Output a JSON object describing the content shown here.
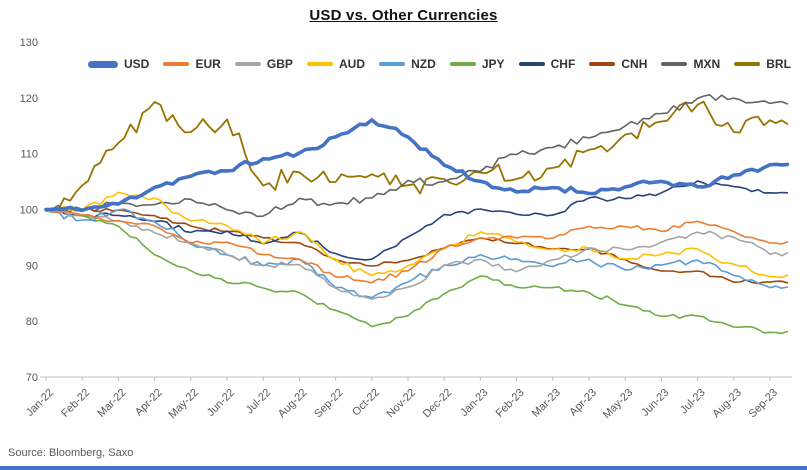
{
  "chart_data": {
    "type": "line",
    "title": "USD vs. Other Currencies",
    "source": "Source: Bloomberg, Saxo",
    "xlabel": "",
    "ylabel": "",
    "ylim": [
      70,
      130
    ],
    "y_ticks": [
      130,
      120,
      110,
      100,
      90,
      80,
      70
    ],
    "grid": false,
    "legend_position": "top",
    "accent_bar_color": "#4472C4",
    "categories": [
      "Jan-22",
      "Feb-22",
      "Mar-22",
      "Apr-22",
      "May-22",
      "Jun-22",
      "Jul-22",
      "Aug-22",
      "Sep-22",
      "Oct-22",
      "Nov-22",
      "Dec-22",
      "Jan-23",
      "Feb-23",
      "Mar-23",
      "Apr-23",
      "May-23",
      "Jun-23",
      "Jul-23",
      "Aug-23",
      "Sep-23"
    ],
    "series": [
      {
        "name": "USD",
        "color": "#4472C4",
        "width": 3.6,
        "volatility": 0.6,
        "values": [
          100,
          100,
          101,
          104,
          106,
          107,
          109,
          110,
          113,
          116,
          113,
          108,
          105,
          103,
          104,
          103,
          104,
          105,
          104,
          106,
          108
        ]
      },
      {
        "name": "EUR",
        "color": "#ED7D31",
        "width": 1.6,
        "volatility": 0.5,
        "values": [
          100,
          99,
          98,
          97,
          94,
          94,
          92,
          91,
          88,
          87,
          89,
          93,
          95,
          95,
          95,
          97,
          97,
          96,
          98,
          96,
          94
        ]
      },
      {
        "name": "GBP",
        "color": "#A5A5A5",
        "width": 1.6,
        "volatility": 0.6,
        "values": [
          100,
          99,
          98,
          96,
          94,
          92,
          90,
          90,
          86,
          84,
          86,
          90,
          91,
          89,
          91,
          93,
          93,
          94,
          96,
          95,
          92
        ]
      },
      {
        "name": "AUD",
        "color": "#FFC000",
        "width": 1.6,
        "volatility": 0.7,
        "values": [
          100,
          100,
          103,
          102,
          98,
          97,
          94,
          96,
          91,
          88,
          90,
          93,
          96,
          94,
          93,
          93,
          91,
          92,
          93,
          90,
          88
        ]
      },
      {
        "name": "NZD",
        "color": "#5B9BD5",
        "width": 1.6,
        "volatility": 0.7,
        "values": [
          100,
          98,
          100,
          98,
          94,
          92,
          90,
          91,
          86,
          84,
          87,
          90,
          92,
          91,
          90,
          91,
          89,
          90,
          91,
          88,
          86
        ]
      },
      {
        "name": "JPY",
        "color": "#70AD47",
        "width": 1.6,
        "volatility": 0.5,
        "values": [
          100,
          99,
          97,
          92,
          89,
          87,
          86,
          85,
          82,
          79,
          81,
          85,
          88,
          86,
          86,
          85,
          83,
          81,
          81,
          79,
          78
        ]
      },
      {
        "name": "CHF",
        "color": "#264478",
        "width": 1.6,
        "volatility": 0.5,
        "values": [
          100,
          99,
          99,
          98,
          96,
          96,
          94,
          96,
          92,
          91,
          95,
          99,
          100,
          99,
          99,
          102,
          102,
          103,
          105,
          104,
          103
        ]
      },
      {
        "name": "CNH",
        "color": "#9E480E",
        "width": 1.6,
        "volatility": 0.4,
        "values": [
          100,
          100,
          100,
          99,
          97,
          96,
          95,
          94,
          91,
          90,
          91,
          93,
          95,
          94,
          93,
          93,
          91,
          89,
          89,
          87,
          87
        ]
      },
      {
        "name": "MXN",
        "color": "#636363",
        "width": 1.6,
        "volatility": 0.8,
        "values": [
          100,
          100,
          101,
          101,
          102,
          100,
          99,
          102,
          101,
          102,
          105,
          105,
          107,
          110,
          111,
          113,
          115,
          117,
          120,
          120,
          119
        ]
      },
      {
        "name": "BRL",
        "color": "#997300",
        "width": 1.8,
        "volatility": 1.8,
        "values": [
          100,
          104,
          112,
          119,
          114,
          116,
          104,
          107,
          105,
          106,
          104,
          105,
          107,
          106,
          107,
          111,
          113,
          116,
          119,
          114,
          116
        ]
      }
    ]
  }
}
